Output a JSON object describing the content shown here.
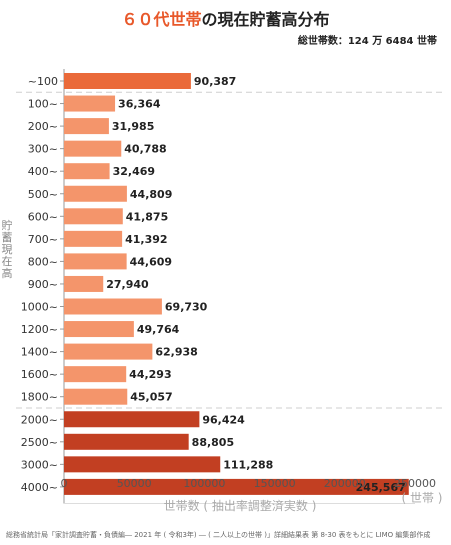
{
  "header": {
    "title_highlight": "６０代世帯",
    "title_rest": "の現在貯蓄高分布",
    "total": "総世帯数：124 万 6484 世帯"
  },
  "footer": {
    "source": "総務省統計局「家計調査貯蓄・負債編― 2021 年 ( 令和3年) ― ( 二人以上の世帯 )」詳細結果表 第 8-30 表をもとに LIMO 編集部作成"
  },
  "chart_data": {
    "type": "bar",
    "orientation": "horizontal",
    "title": "６０代世帯の現在貯蓄高分布",
    "ylabel": "貯蓄現在高",
    "xlabel": "世帯数 ( 抽出率調整済実数 )",
    "xunit": "( 世帯 )",
    "xlim": [
      0,
      250000
    ],
    "xticks": [
      0,
      50000,
      100000,
      150000,
      200000,
      250000
    ],
    "categories": [
      "~100",
      "100~",
      "200~",
      "300~",
      "400~",
      "500~",
      "600~",
      "700~",
      "800~",
      "900~",
      "1000~",
      "1200~",
      "1400~",
      "1600~",
      "1800~",
      "2000~",
      "2500~",
      "3000~",
      "4000~"
    ],
    "values": [
      90387,
      36364,
      31985,
      40788,
      32469,
      44809,
      41875,
      41392,
      44609,
      27940,
      69730,
      49764,
      62938,
      44293,
      45057,
      96424,
      88805,
      111288,
      245567
    ],
    "value_labels": [
      "90,387",
      "36,364",
      "31,985",
      "40,788",
      "32,469",
      "44,809",
      "41,875",
      "41,392",
      "44,609",
      "27,940",
      "69,730",
      "49,764",
      "62,938",
      "44,293",
      "45,057",
      "96,424",
      "88,805",
      "111,288",
      "245,567"
    ],
    "colors": {
      "first": "#ea6a3a",
      "middle": "#f4956b",
      "high": "#c23f22"
    },
    "grid": false
  }
}
